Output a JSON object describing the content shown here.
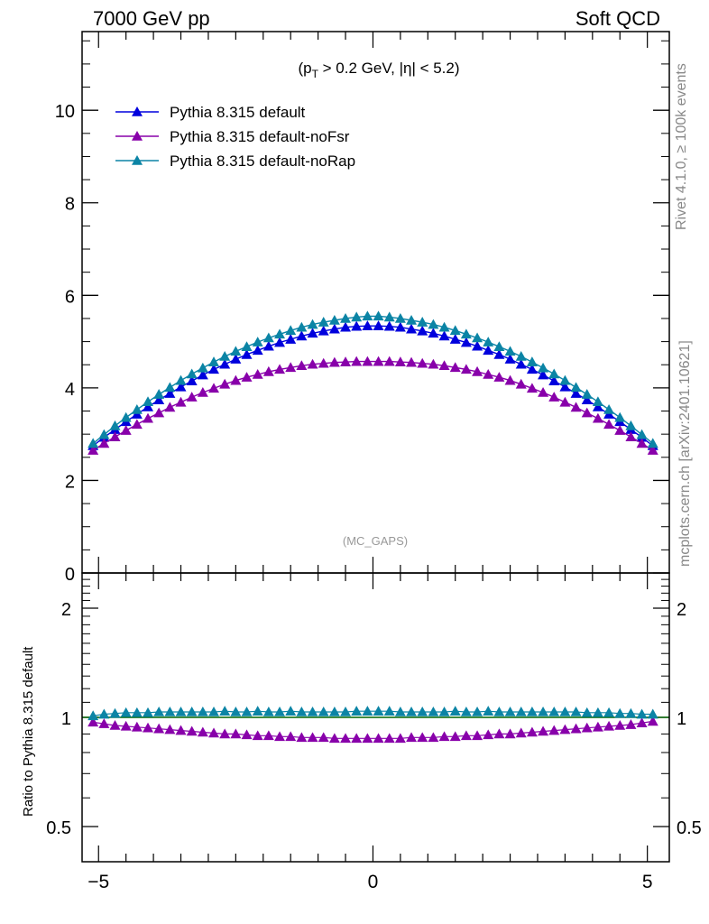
{
  "header": {
    "energy_label": "7000 GeV pp",
    "category_label": "Soft QCD"
  },
  "side_text": {
    "rivet": "Rivet 4.1.0, ≥ 100k events",
    "source": "mcplots.cern.ch [arXiv:2401.10621]"
  },
  "annotations": {
    "cut_label": "(p_T > 0.2 GeV, |η| < 5.2)",
    "analysis_tag": "(MC_GAPS)"
  },
  "colors": {
    "default": "#0000dd",
    "noFsr": "#8800aa",
    "noRap": "#0b84a5",
    "reference_line": "#006600",
    "axis": "#000000",
    "muted_text": "#888888"
  },
  "chart_data": [
    {
      "type": "line",
      "panel": "main",
      "title": "(p_T > 0.2 GeV, |η| < 5.2)",
      "xlabel": "",
      "ylabel": "",
      "xlim": [
        -5.3,
        5.4
      ],
      "ylim": [
        0,
        11.7
      ],
      "yticks": [
        0,
        2,
        4,
        6,
        8,
        10
      ],
      "ytick_labels": [
        "0",
        "2",
        "4",
        "6",
        "8",
        "10"
      ],
      "grid": false,
      "legend_position": "top-left",
      "x": [
        -5.1,
        -4.9,
        -4.7,
        -4.5,
        -4.3,
        -4.1,
        -3.9,
        -3.7,
        -3.5,
        -3.3,
        -3.1,
        -2.9,
        -2.7,
        -2.5,
        -2.3,
        -2.1,
        -1.9,
        -1.7,
        -1.5,
        -1.3,
        -1.1,
        -0.9,
        -0.7,
        -0.5,
        -0.3,
        -0.1,
        0.1,
        0.3,
        0.5,
        0.7,
        0.9,
        1.1,
        1.3,
        1.5,
        1.7,
        1.9,
        2.1,
        2.3,
        2.5,
        2.7,
        2.9,
        3.1,
        3.3,
        3.5,
        3.7,
        3.9,
        4.1,
        4.3,
        4.5,
        4.7,
        4.9,
        5.1
      ],
      "series": [
        {
          "name": "Pythia 8.315 default",
          "color_key": "default",
          "values": [
            2.75,
            2.93,
            3.1,
            3.27,
            3.43,
            3.59,
            3.74,
            3.88,
            4.02,
            4.15,
            4.28,
            4.4,
            4.51,
            4.62,
            4.72,
            4.81,
            4.9,
            4.98,
            5.05,
            5.12,
            5.18,
            5.23,
            5.27,
            5.31,
            5.33,
            5.34,
            5.34,
            5.33,
            5.31,
            5.27,
            5.23,
            5.18,
            5.12,
            5.05,
            4.98,
            4.9,
            4.81,
            4.72,
            4.62,
            4.51,
            4.4,
            4.28,
            4.15,
            4.02,
            3.88,
            3.74,
            3.59,
            3.43,
            3.27,
            3.1,
            2.93,
            2.75
          ]
        },
        {
          "name": "Pythia 8.315 default-noFsr",
          "color_key": "noFsr",
          "values": [
            2.65,
            2.8,
            2.94,
            3.08,
            3.21,
            3.34,
            3.46,
            3.58,
            3.69,
            3.8,
            3.9,
            3.99,
            4.08,
            4.16,
            4.23,
            4.29,
            4.35,
            4.4,
            4.44,
            4.48,
            4.51,
            4.53,
            4.55,
            4.56,
            4.57,
            4.57,
            4.57,
            4.57,
            4.56,
            4.55,
            4.53,
            4.51,
            4.48,
            4.44,
            4.4,
            4.35,
            4.29,
            4.23,
            4.16,
            4.08,
            3.99,
            3.9,
            3.8,
            3.69,
            3.58,
            3.46,
            3.34,
            3.21,
            3.08,
            2.94,
            2.8,
            2.65
          ]
        },
        {
          "name": "Pythia 8.315 default-noRap",
          "color_key": "noRap",
          "values": [
            2.8,
            2.99,
            3.18,
            3.36,
            3.53,
            3.7,
            3.86,
            4.01,
            4.16,
            4.3,
            4.43,
            4.56,
            4.68,
            4.79,
            4.89,
            4.99,
            5.08,
            5.16,
            5.24,
            5.31,
            5.37,
            5.42,
            5.46,
            5.5,
            5.53,
            5.55,
            5.55,
            5.53,
            5.5,
            5.46,
            5.42,
            5.37,
            5.31,
            5.24,
            5.16,
            5.08,
            4.99,
            4.89,
            4.79,
            4.68,
            4.56,
            4.43,
            4.3,
            4.16,
            4.01,
            3.86,
            3.7,
            3.53,
            3.36,
            3.18,
            2.99,
            2.8
          ]
        }
      ]
    },
    {
      "type": "line",
      "panel": "ratio",
      "title": "",
      "xlabel": "",
      "ylabel": "Ratio to Pythia 8.315 default",
      "xlim": [
        -5.3,
        5.4
      ],
      "ylim": [
        0.4,
        2.5
      ],
      "ylog": true,
      "yticks": [
        0.5,
        1,
        2
      ],
      "ytick_labels": [
        "0.5",
        "1",
        "2"
      ],
      "xticks": [
        -5,
        0,
        5
      ],
      "xtick_labels": [
        "−5",
        "0",
        "5"
      ],
      "reference_value": 1,
      "grid": false,
      "x": [
        -5.1,
        -4.9,
        -4.7,
        -4.5,
        -4.3,
        -4.1,
        -3.9,
        -3.7,
        -3.5,
        -3.3,
        -3.1,
        -2.9,
        -2.7,
        -2.5,
        -2.3,
        -2.1,
        -1.9,
        -1.7,
        -1.5,
        -1.3,
        -1.1,
        -0.9,
        -0.7,
        -0.5,
        -0.3,
        -0.1,
        0.1,
        0.3,
        0.5,
        0.7,
        0.9,
        1.1,
        1.3,
        1.5,
        1.7,
        1.9,
        2.1,
        2.3,
        2.5,
        2.7,
        2.9,
        3.1,
        3.3,
        3.5,
        3.7,
        3.9,
        4.1,
        4.3,
        4.5,
        4.7,
        4.9,
        5.1
      ],
      "series": [
        {
          "name": "Pythia 8.315 default-noFsr",
          "color_key": "noFsr",
          "values": [
            0.97,
            0.96,
            0.95,
            0.945,
            0.94,
            0.935,
            0.93,
            0.925,
            0.92,
            0.915,
            0.91,
            0.905,
            0.9,
            0.9,
            0.895,
            0.89,
            0.89,
            0.885,
            0.885,
            0.88,
            0.88,
            0.88,
            0.875,
            0.875,
            0.875,
            0.875,
            0.875,
            0.875,
            0.875,
            0.88,
            0.88,
            0.88,
            0.885,
            0.885,
            0.89,
            0.89,
            0.895,
            0.9,
            0.9,
            0.905,
            0.91,
            0.915,
            0.92,
            0.925,
            0.93,
            0.935,
            0.94,
            0.945,
            0.95,
            0.955,
            0.965,
            0.975
          ]
        },
        {
          "name": "Pythia 8.315 default-noRap",
          "color_key": "noRap",
          "values": [
            1.01,
            1.02,
            1.025,
            1.03,
            1.03,
            1.03,
            1.035,
            1.035,
            1.035,
            1.035,
            1.035,
            1.035,
            1.04,
            1.035,
            1.035,
            1.04,
            1.035,
            1.035,
            1.04,
            1.035,
            1.035,
            1.035,
            1.035,
            1.035,
            1.04,
            1.04,
            1.04,
            1.04,
            1.035,
            1.035,
            1.035,
            1.035,
            1.035,
            1.04,
            1.035,
            1.035,
            1.04,
            1.035,
            1.035,
            1.035,
            1.035,
            1.035,
            1.035,
            1.035,
            1.035,
            1.03,
            1.03,
            1.03,
            1.025,
            1.025,
            1.02,
            1.02
          ]
        }
      ]
    }
  ]
}
